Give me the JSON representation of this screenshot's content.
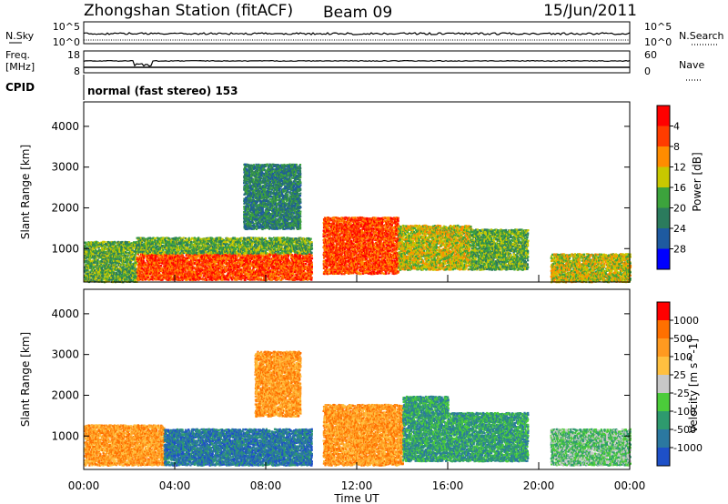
{
  "header": {
    "station": "Zhongshan Station (fitACF)",
    "beam": "Beam 09",
    "date": "15/Jun/2011"
  },
  "strips": {
    "nsky_label": "N.Sky",
    "nsky_ticks": [
      "10^5",
      "10^0"
    ],
    "nsearch_label": "N.Search",
    "nsearch_ticks": [
      "10^5",
      "10^0"
    ],
    "freq_label_1": "Freq.",
    "freq_label_2": "[MHz]",
    "freq_ticks": [
      "18",
      "8"
    ],
    "nave_label": "Nave",
    "nave_ticks": [
      "60",
      "0"
    ],
    "cpid_label": "CPID",
    "cpid_text": "normal (fast stereo) 153"
  },
  "x_axis": {
    "label": "Time UT",
    "ticks": [
      "00:00",
      "04:00",
      "08:00",
      "12:00",
      "16:00",
      "20:00",
      "00:00"
    ]
  },
  "chart_data": [
    {
      "type": "heatmap",
      "panel": "power",
      "ylabel": "Slant Range [km]",
      "yticks": [
        "1000",
        "2000",
        "3000",
        "4000"
      ],
      "ylim": [
        180,
        4600
      ],
      "xlim_hours": [
        0,
        24
      ],
      "colorbar": {
        "label": "Power [dB]",
        "ticks": [
          "4",
          "8",
          "12",
          "16",
          "20",
          "24",
          "28"
        ],
        "colors": [
          "#0000ff",
          "#1e5aa0",
          "#2b7b5d",
          "#3ca33c",
          "#c8c800",
          "#ff8c00",
          "#ff3c00",
          "#ff0000"
        ]
      },
      "regions": [
        {
          "t0": 0.0,
          "t1": 2.3,
          "r0": 200,
          "r1": 1200,
          "level": 3
        },
        {
          "t0": 2.3,
          "t1": 10.0,
          "r0": 250,
          "r1": 900,
          "level": 6
        },
        {
          "t0": 2.3,
          "t1": 10.0,
          "r0": 900,
          "r1": 1300,
          "level": 3
        },
        {
          "t0": 10.5,
          "t1": 13.8,
          "r0": 400,
          "r1": 1800,
          "level": 6
        },
        {
          "t0": 13.8,
          "t1": 17.0,
          "r0": 500,
          "r1": 1600,
          "level": 4
        },
        {
          "t0": 17.0,
          "t1": 19.5,
          "r0": 500,
          "r1": 1500,
          "level": 3
        },
        {
          "t0": 20.5,
          "t1": 24.0,
          "r0": 200,
          "r1": 900,
          "level": 4
        },
        {
          "t0": 7.0,
          "t1": 9.5,
          "r0": 1500,
          "r1": 3100,
          "level": 2
        }
      ]
    },
    {
      "type": "heatmap",
      "panel": "velocity",
      "ylabel": "Slant Range [km]",
      "yticks": [
        "1000",
        "2000",
        "3000",
        "4000"
      ],
      "ylim": [
        180,
        4600
      ],
      "xlim_hours": [
        0,
        24
      ],
      "colorbar": {
        "label": "Velocity [m s^-1]",
        "ticks": [
          "1000",
          "500",
          "100",
          "25",
          "-25",
          "-100",
          "-500",
          "-1000"
        ],
        "colors": [
          "#1e50c8",
          "#2b78a0",
          "#2e9a6e",
          "#4bcc3a",
          "#c8c8c8",
          "#ffc040",
          "#ff9a20",
          "#ff7000",
          "#ff0000"
        ]
      },
      "regions": [
        {
          "t0": 0.0,
          "t1": 3.5,
          "r0": 300,
          "r1": 1300,
          "level": 6
        },
        {
          "t0": 3.5,
          "t1": 10.0,
          "r0": 300,
          "r1": 1200,
          "level": 1
        },
        {
          "t0": 10.5,
          "t1": 14.0,
          "r0": 300,
          "r1": 1800,
          "level": 6
        },
        {
          "t0": 14.0,
          "t1": 16.0,
          "r0": 400,
          "r1": 2000,
          "level": 2
        },
        {
          "t0": 16.0,
          "t1": 19.5,
          "r0": 400,
          "r1": 1600,
          "level": 2
        },
        {
          "t0": 20.5,
          "t1": 24.0,
          "r0": 300,
          "r1": 1200,
          "level": 3
        },
        {
          "t0": 7.5,
          "t1": 9.5,
          "r0": 1500,
          "r1": 3100,
          "level": 6
        }
      ]
    }
  ]
}
